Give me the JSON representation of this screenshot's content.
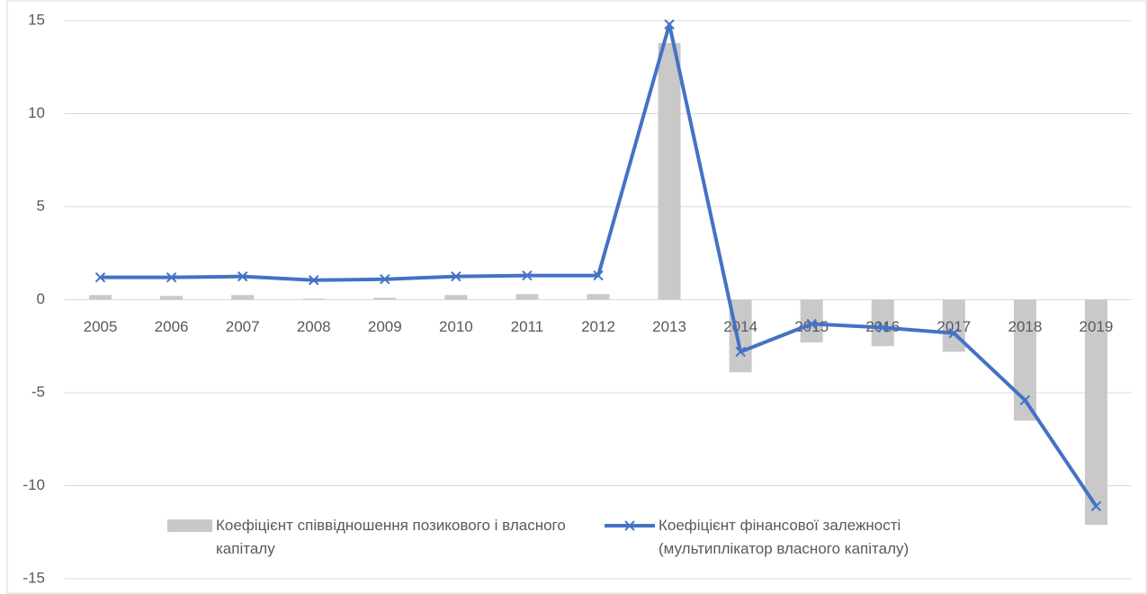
{
  "chart_data": {
    "type": "bar_line",
    "categories": [
      "2005",
      "2006",
      "2007",
      "2008",
      "2009",
      "2010",
      "2011",
      "2012",
      "2013",
      "2014",
      "2015",
      "2016",
      "2017",
      "2018",
      "2019"
    ],
    "series": [
      {
        "name": "Коефіцієнт співвідношення позикового і власного капіталу",
        "type": "bar",
        "color": "#c9c9c9",
        "values": [
          0.25,
          0.2,
          0.25,
          0.05,
          0.1,
          0.25,
          0.3,
          0.3,
          13.8,
          -3.9,
          -2.3,
          -2.5,
          -2.8,
          -6.5,
          -12.1
        ]
      },
      {
        "name": "Коефіцієнт фінансової залежності (мультиплікатор власного капіталу)",
        "type": "line",
        "color": "#4472c4",
        "values": [
          1.2,
          1.2,
          1.25,
          1.05,
          1.1,
          1.25,
          1.3,
          1.3,
          14.8,
          -2.8,
          -1.3,
          -1.5,
          -1.8,
          -5.4,
          -11.1
        ]
      }
    ],
    "ylim": [
      -15,
      15
    ],
    "yticks": [
      -15,
      -10,
      -5,
      0,
      5,
      10,
      15
    ],
    "grid": true,
    "legend": "bottom"
  }
}
